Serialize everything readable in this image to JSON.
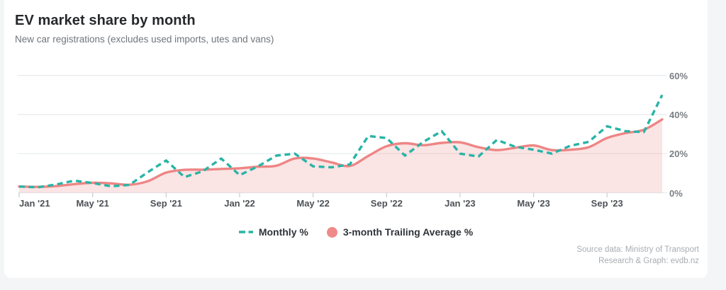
{
  "page": {
    "title": "EV market share by month",
    "subtitle": "New car registrations (excludes used imports, utes and vans)"
  },
  "chart_data": {
    "type": "area",
    "title": "EV market share by month",
    "subtitle": "New car registrations (excludes used imports, utes and vans)",
    "months": [
      "Jan '21",
      "Feb '21",
      "Mar '21",
      "Apr '21",
      "May '21",
      "Jun '21",
      "Jul '21",
      "Aug '21",
      "Sep '21",
      "Oct '21",
      "Nov '21",
      "Dec '21",
      "Jan '22",
      "Feb '22",
      "Mar '22",
      "Apr '22",
      "May '22",
      "Jun '22",
      "Jul '22",
      "Aug '22",
      "Sep '22",
      "Oct '22",
      "Nov '22",
      "Dec '22",
      "Jan '23",
      "Feb '23",
      "Mar '23",
      "Apr '23",
      "May '23",
      "Jun '23",
      "Jul '23",
      "Aug '23",
      "Sep '23",
      "Oct '23",
      "Nov '23",
      "Dec '23"
    ],
    "series": [
      {
        "name": "Monthly %",
        "style": "dashed-line",
        "color": "#28b4a6",
        "values": [
          3.2,
          2.8,
          4.2,
          6.2,
          5,
          3.3,
          4,
          10.5,
          16.5,
          8,
          11,
          17.5,
          9,
          13.5,
          19,
          20,
          13.5,
          13,
          14.5,
          29,
          28,
          19,
          26,
          31.5,
          20,
          18.5,
          27,
          23.5,
          22,
          20,
          24,
          26,
          34,
          31.5,
          31,
          50
        ]
      },
      {
        "name": "3-month Trailing Average %",
        "style": "area",
        "color": "#ee8585",
        "fill_color": "rgba(238,133,133,0.22)",
        "values": [
          3.2,
          3,
          3.4,
          4.4,
          5.1,
          4.8,
          4.1,
          5.9,
          10.3,
          11.7,
          11.8,
          12.2,
          12.5,
          13.3,
          13.8,
          17.5,
          17.5,
          15.5,
          13.7,
          18.8,
          23.8,
          25.3,
          24.3,
          25.5,
          25.8,
          23.3,
          21.8,
          23,
          24.2,
          21.8,
          22,
          23.3,
          28,
          30.5,
          32.2,
          37.5
        ]
      }
    ],
    "x_tick_labels": [
      "Jan '21",
      "May '21",
      "Sep '21",
      "Jan '22",
      "May '22",
      "Sep '22",
      "Jan '23",
      "May '23",
      "Sep '23"
    ],
    "x_tick_indices": [
      0,
      4,
      8,
      12,
      16,
      20,
      24,
      28,
      32
    ],
    "y_tick_labels": [
      "0%",
      "20%",
      "40%",
      "60%"
    ],
    "y_tick_values": [
      0,
      20,
      40,
      60
    ],
    "ylim": [
      0,
      60
    ],
    "grid": "horizontal",
    "legend_position": "bottom",
    "y_axis_side": "right"
  },
  "footer": {
    "source_line1": "Source data: Ministry of Transport",
    "source_line2": "Research & Graph: evdb.nz"
  },
  "colors": {
    "monthly_line": "#28b4a6",
    "average_line": "#ee8585",
    "average_fill": "rgba(238,133,133,0.22)",
    "gridline": "#e8eaec",
    "tick": "#c9cdd1"
  }
}
